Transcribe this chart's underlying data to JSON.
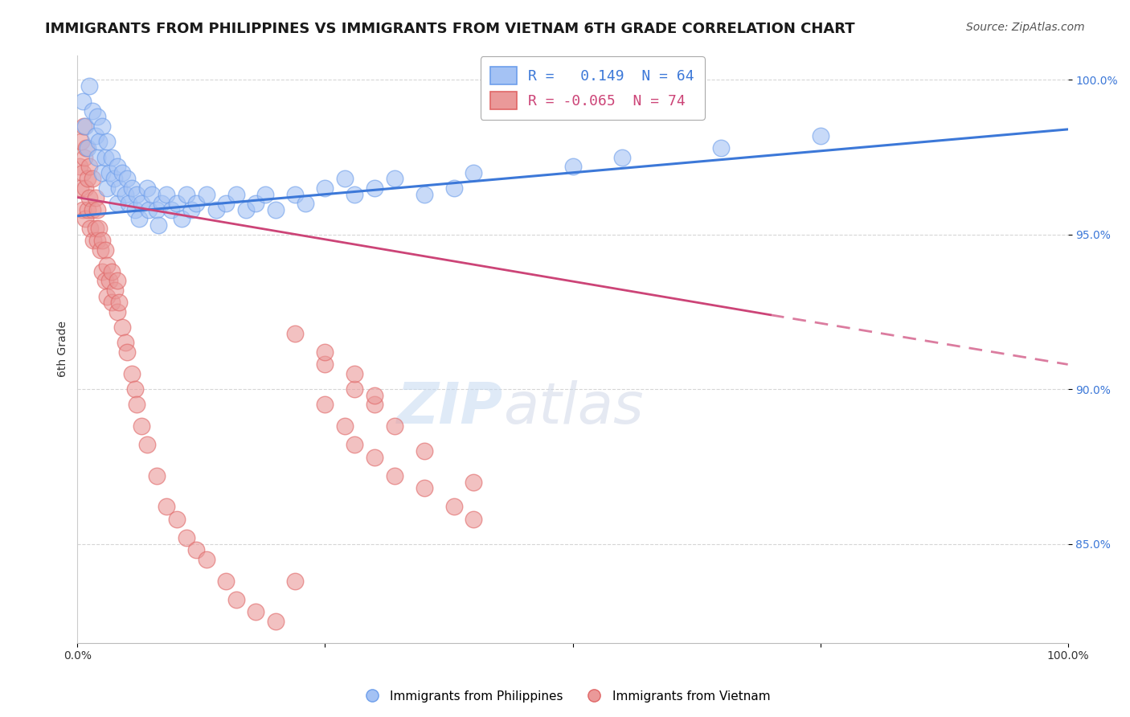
{
  "title": "IMMIGRANTS FROM PHILIPPINES VS IMMIGRANTS FROM VIETNAM 6TH GRADE CORRELATION CHART",
  "source": "Source: ZipAtlas.com",
  "ylabel": "6th Grade",
  "watermark_zip": "ZIP",
  "watermark_atlas": "atlas",
  "xlim": [
    0.0,
    1.0
  ],
  "ylim": [
    0.818,
    1.008
  ],
  "yticks": [
    0.85,
    0.9,
    0.95,
    1.0
  ],
  "ytick_labels": [
    "85.0%",
    "90.0%",
    "95.0%",
    "100.0%"
  ],
  "legend_r1": "R =   0.149  N = 64",
  "legend_r2": "R = -0.065  N = 74",
  "blue_color": "#a4c2f4",
  "pink_color": "#ea9999",
  "blue_edge_color": "#6d9eeb",
  "pink_edge_color": "#e06666",
  "blue_line_color": "#3c78d8",
  "pink_line_color": "#cc4477",
  "blue_trend_x0": 0.0,
  "blue_trend_x1": 1.0,
  "blue_trend_y0": 0.956,
  "blue_trend_y1": 0.984,
  "pink_trend_solid_x0": 0.0,
  "pink_trend_solid_x1": 0.7,
  "pink_trend_solid_y0": 0.962,
  "pink_trend_solid_y1": 0.924,
  "pink_trend_dash_x0": 0.7,
  "pink_trend_dash_x1": 1.0,
  "pink_trend_dash_y0": 0.924,
  "pink_trend_dash_y1": 0.908,
  "philippines_x": [
    0.005,
    0.008,
    0.01,
    0.012,
    0.015,
    0.018,
    0.02,
    0.02,
    0.022,
    0.025,
    0.025,
    0.028,
    0.03,
    0.03,
    0.032,
    0.035,
    0.037,
    0.04,
    0.04,
    0.042,
    0.045,
    0.048,
    0.05,
    0.052,
    0.055,
    0.058,
    0.06,
    0.062,
    0.065,
    0.07,
    0.072,
    0.075,
    0.08,
    0.082,
    0.085,
    0.09,
    0.095,
    0.1,
    0.105,
    0.11,
    0.115,
    0.12,
    0.13,
    0.14,
    0.15,
    0.16,
    0.17,
    0.18,
    0.19,
    0.2,
    0.22,
    0.23,
    0.25,
    0.27,
    0.28,
    0.3,
    0.32,
    0.35,
    0.38,
    0.4,
    0.5,
    0.55,
    0.65,
    0.75
  ],
  "philippines_y": [
    0.993,
    0.985,
    0.978,
    0.998,
    0.99,
    0.982,
    0.988,
    0.975,
    0.98,
    0.985,
    0.97,
    0.975,
    0.98,
    0.965,
    0.97,
    0.975,
    0.968,
    0.972,
    0.96,
    0.965,
    0.97,
    0.963,
    0.968,
    0.96,
    0.965,
    0.958,
    0.963,
    0.955,
    0.96,
    0.965,
    0.958,
    0.963,
    0.958,
    0.953,
    0.96,
    0.963,
    0.958,
    0.96,
    0.955,
    0.963,
    0.958,
    0.96,
    0.963,
    0.958,
    0.96,
    0.963,
    0.958,
    0.96,
    0.963,
    0.958,
    0.963,
    0.96,
    0.965,
    0.968,
    0.963,
    0.965,
    0.968,
    0.963,
    0.965,
    0.97,
    0.972,
    0.975,
    0.978,
    0.982
  ],
  "vietnam_x": [
    0.002,
    0.003,
    0.004,
    0.005,
    0.005,
    0.006,
    0.007,
    0.008,
    0.008,
    0.009,
    0.01,
    0.01,
    0.012,
    0.012,
    0.013,
    0.015,
    0.015,
    0.016,
    0.018,
    0.018,
    0.02,
    0.02,
    0.022,
    0.023,
    0.025,
    0.025,
    0.028,
    0.028,
    0.03,
    0.03,
    0.032,
    0.035,
    0.035,
    0.038,
    0.04,
    0.04,
    0.042,
    0.045,
    0.048,
    0.05,
    0.055,
    0.058,
    0.06,
    0.065,
    0.07,
    0.08,
    0.09,
    0.1,
    0.11,
    0.12,
    0.13,
    0.15,
    0.16,
    0.18,
    0.2,
    0.22,
    0.25,
    0.27,
    0.28,
    0.3,
    0.32,
    0.35,
    0.38,
    0.4,
    0.4,
    0.25,
    0.28,
    0.3,
    0.32,
    0.35,
    0.22,
    0.25,
    0.28,
    0.3
  ],
  "vietnam_y": [
    0.972,
    0.965,
    0.98,
    0.97,
    0.958,
    0.985,
    0.975,
    0.965,
    0.955,
    0.978,
    0.968,
    0.958,
    0.972,
    0.962,
    0.952,
    0.968,
    0.958,
    0.948,
    0.962,
    0.952,
    0.958,
    0.948,
    0.952,
    0.945,
    0.948,
    0.938,
    0.945,
    0.935,
    0.94,
    0.93,
    0.935,
    0.938,
    0.928,
    0.932,
    0.935,
    0.925,
    0.928,
    0.92,
    0.915,
    0.912,
    0.905,
    0.9,
    0.895,
    0.888,
    0.882,
    0.872,
    0.862,
    0.858,
    0.852,
    0.848,
    0.845,
    0.838,
    0.832,
    0.828,
    0.825,
    0.838,
    0.895,
    0.888,
    0.882,
    0.878,
    0.872,
    0.868,
    0.862,
    0.858,
    0.87,
    0.908,
    0.9,
    0.895,
    0.888,
    0.88,
    0.918,
    0.912,
    0.905,
    0.898
  ],
  "title_fontsize": 13,
  "source_fontsize": 10,
  "axis_label_fontsize": 10,
  "tick_fontsize": 10,
  "legend_fontsize": 13,
  "watermark_fontsize": 52,
  "background_color": "#ffffff",
  "grid_color": "#bbbbbb",
  "grid_alpha": 0.6
}
